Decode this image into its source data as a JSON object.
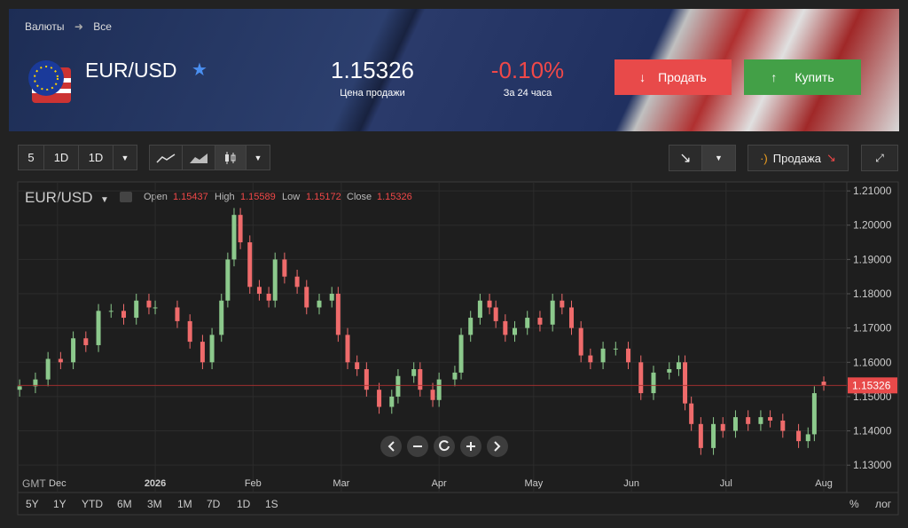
{
  "header": {
    "breadcrumb": [
      "Валюты",
      "Все"
    ],
    "pair": "EUR/USD",
    "price": "1.15326",
    "price_caption": "Цена продажи",
    "change": "-0.10%",
    "change_caption": "За 24 часа",
    "sell": "Продать",
    "buy": "Купить"
  },
  "toolbar": {
    "interval": "5",
    "periods": [
      "1D",
      "1D"
    ],
    "trade_mode": "Продажа"
  },
  "chart_data": {
    "type": "candlestick",
    "title": "EUR/USD",
    "ohlc_labels": [
      "Open",
      "High",
      "Low",
      "Close"
    ],
    "timezone": "GMT",
    "up_color": "#8cc98c",
    "down_color": "#ef6b6b",
    "grid": true,
    "x": [
      -43,
      -38,
      -34,
      -30,
      -26,
      -22,
      -18,
      -14,
      -10,
      -6,
      -2,
      0,
      7,
      11,
      15,
      18,
      21,
      23,
      25,
      27,
      30,
      33,
      36,
      38,
      41,
      45,
      48,
      52,
      56,
      58,
      61,
      64,
      67,
      71,
      75,
      77,
      82,
      84,
      88,
      90,
      95,
      97,
      100,
      103,
      106,
      108,
      111,
      114,
      118,
      122,
      126,
      129,
      132,
      135,
      138,
      142,
      146,
      150,
      154,
      158,
      163,
      166,
      168,
      170,
      173,
      177,
      180,
      184,
      188,
      192,
      195,
      199,
      204,
      207,
      209,
      212
    ],
    "open": [
      1.152,
      1.153,
      1.155,
      1.161,
      1.16,
      1.167,
      1.165,
      1.175,
      1.175,
      1.173,
      1.178,
      1.176,
      1.176,
      1.172,
      1.166,
      1.16,
      1.168,
      1.178,
      1.19,
      1.203,
      1.195,
      1.182,
      1.18,
      1.178,
      1.19,
      1.185,
      1.182,
      1.176,
      1.178,
      1.18,
      1.168,
      1.16,
      1.158,
      1.152,
      1.147,
      1.15,
      1.156,
      1.158,
      1.152,
      1.149,
      1.155,
      1.157,
      1.168,
      1.173,
      1.178,
      1.176,
      1.172,
      1.168,
      1.17,
      1.173,
      1.171,
      1.178,
      1.176,
      1.17,
      1.162,
      1.16,
      1.164,
      1.164,
      1.16,
      1.151,
      1.157,
      1.158,
      1.16,
      1.148,
      1.142,
      1.135,
      1.142,
      1.14,
      1.144,
      1.142,
      1.144,
      1.143,
      1.14,
      1.137,
      1.139,
      1.15437
    ],
    "high": [
      1.155,
      1.157,
      1.163,
      1.163,
      1.169,
      1.169,
      1.177,
      1.177,
      1.177,
      1.18,
      1.18,
      1.178,
      1.178,
      1.174,
      1.168,
      1.17,
      1.18,
      1.192,
      1.205,
      1.205,
      1.197,
      1.184,
      1.182,
      1.192,
      1.192,
      1.187,
      1.184,
      1.18,
      1.182,
      1.182,
      1.17,
      1.162,
      1.16,
      1.154,
      1.152,
      1.158,
      1.16,
      1.16,
      1.154,
      1.157,
      1.159,
      1.17,
      1.175,
      1.18,
      1.18,
      1.178,
      1.174,
      1.172,
      1.175,
      1.175,
      1.18,
      1.18,
      1.178,
      1.172,
      1.164,
      1.166,
      1.166,
      1.166,
      1.162,
      1.159,
      1.16,
      1.162,
      1.162,
      1.15,
      1.144,
      1.144,
      1.144,
      1.146,
      1.146,
      1.146,
      1.146,
      1.145,
      1.142,
      1.141,
      1.153,
      1.15589
    ],
    "low": [
      1.15,
      1.151,
      1.153,
      1.158,
      1.158,
      1.163,
      1.163,
      1.173,
      1.171,
      1.171,
      1.174,
      1.174,
      1.17,
      1.164,
      1.158,
      1.158,
      1.166,
      1.176,
      1.188,
      1.193,
      1.18,
      1.178,
      1.176,
      1.176,
      1.183,
      1.18,
      1.174,
      1.174,
      1.176,
      1.166,
      1.158,
      1.156,
      1.15,
      1.145,
      1.145,
      1.148,
      1.154,
      1.15,
      1.147,
      1.147,
      1.153,
      1.155,
      1.166,
      1.171,
      1.174,
      1.17,
      1.166,
      1.166,
      1.168,
      1.169,
      1.169,
      1.174,
      1.168,
      1.16,
      1.158,
      1.158,
      1.162,
      1.158,
      1.149,
      1.149,
      1.155,
      1.156,
      1.146,
      1.14,
      1.133,
      1.133,
      1.138,
      1.138,
      1.14,
      1.14,
      1.141,
      1.138,
      1.135,
      1.135,
      1.137,
      1.15172
    ],
    "close": [
      1.153,
      1.155,
      1.161,
      1.16,
      1.167,
      1.165,
      1.175,
      1.175,
      1.173,
      1.178,
      1.176,
      1.176,
      1.172,
      1.166,
      1.16,
      1.168,
      1.178,
      1.19,
      1.203,
      1.195,
      1.182,
      1.18,
      1.178,
      1.19,
      1.185,
      1.182,
      1.176,
      1.178,
      1.18,
      1.168,
      1.16,
      1.158,
      1.152,
      1.147,
      1.15,
      1.156,
      1.158,
      1.152,
      1.149,
      1.155,
      1.157,
      1.168,
      1.173,
      1.178,
      1.176,
      1.172,
      1.168,
      1.17,
      1.173,
      1.171,
      1.178,
      1.176,
      1.17,
      1.162,
      1.16,
      1.164,
      1.164,
      1.16,
      1.151,
      1.157,
      1.158,
      1.16,
      1.148,
      1.142,
      1.135,
      1.142,
      1.14,
      1.144,
      1.142,
      1.144,
      1.143,
      1.14,
      1.137,
      1.139,
      1.151,
      1.15326
    ],
    "xlim": [
      -43.6,
      219.3
    ],
    "xticks": [
      {
        "value": -31,
        "label": "Dec"
      },
      {
        "value": 0,
        "label": "2026"
      },
      {
        "value": 31,
        "label": "Feb"
      },
      {
        "value": 59,
        "label": "Mar"
      },
      {
        "value": 90,
        "label": "Apr"
      },
      {
        "value": 120,
        "label": "May"
      },
      {
        "value": 151,
        "label": "Jun"
      },
      {
        "value": 181,
        "label": "Jul"
      },
      {
        "value": 212,
        "label": "Aug"
      }
    ],
    "ylim": [
      1.1272,
      1.2121
    ],
    "yticks": [
      {
        "value": 1.13,
        "label": "1.13000"
      },
      {
        "value": 1.14,
        "label": "1.14000"
      },
      {
        "value": 1.15,
        "label": "1.15000"
      },
      {
        "value": 1.16,
        "label": "1.16000"
      },
      {
        "value": 1.17,
        "label": "1.17000"
      },
      {
        "value": 1.18,
        "label": "1.18000"
      },
      {
        "value": 1.19,
        "label": "1.19000"
      },
      {
        "value": 1.2,
        "label": "1.20000"
      },
      {
        "value": 1.21,
        "label": "1.21000"
      }
    ]
  },
  "range_buttons": [
    "5Y",
    "1Y",
    "YTD",
    "6M",
    "3M",
    "1M",
    "7D",
    "1D",
    "1S"
  ],
  "scale_buttons": [
    "%",
    "лог"
  ]
}
